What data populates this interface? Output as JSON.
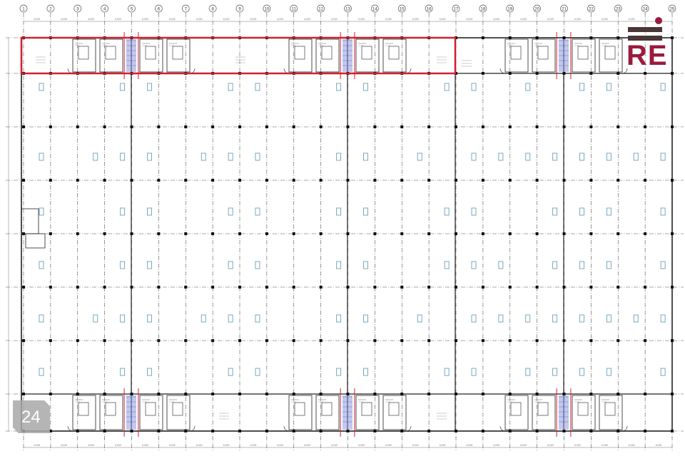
{
  "plan": {
    "grid_labels": [
      "1",
      "2",
      "3",
      "4",
      "5",
      "6",
      "7",
      "8",
      "9",
      "10",
      "11",
      "12",
      "13",
      "14",
      "15",
      "16",
      "17",
      "18",
      "19",
      "20",
      "21",
      "22",
      "23",
      "24",
      "25"
    ],
    "dimension_label": "6,000",
    "colors": {
      "highlight": "#d0202e",
      "lines": "#222222",
      "stairs": "#8f9be0"
    }
  },
  "logo": {
    "text": "RE",
    "color": "#9b1b3c"
  },
  "badge": {
    "text": "24"
  }
}
